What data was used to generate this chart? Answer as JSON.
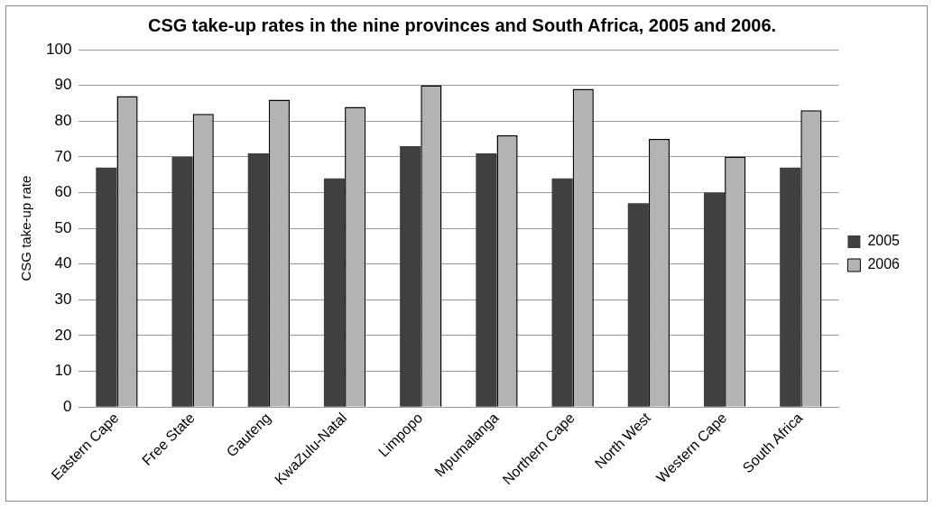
{
  "chart_data": {
    "type": "bar",
    "title": "CSG take-up rates in the nine provinces and South Africa, 2005 and 2006.",
    "ylabel": "CSG take-up rate",
    "categories": [
      "Eastern Cape",
      "Free State",
      "Gauteng",
      "KwaZulu-Natal",
      "Limpopo",
      "Mpumalanga",
      "Northern Cape",
      "North West",
      "Western Cape",
      "South Africa"
    ],
    "series": [
      {
        "name": "2005",
        "color": "#404040",
        "values": [
          67,
          70,
          71,
          64,
          73,
          71,
          64,
          57,
          60,
          67
        ]
      },
      {
        "name": "2006",
        "color": "#b3b3b3",
        "values": [
          87,
          82,
          86,
          84,
          90,
          76,
          89,
          75,
          70,
          83
        ]
      }
    ],
    "ylim": [
      0,
      100
    ],
    "yticks": [
      0,
      10,
      20,
      30,
      40,
      50,
      60,
      70,
      80,
      90,
      100
    ],
    "grid": "y",
    "legend": "right"
  }
}
